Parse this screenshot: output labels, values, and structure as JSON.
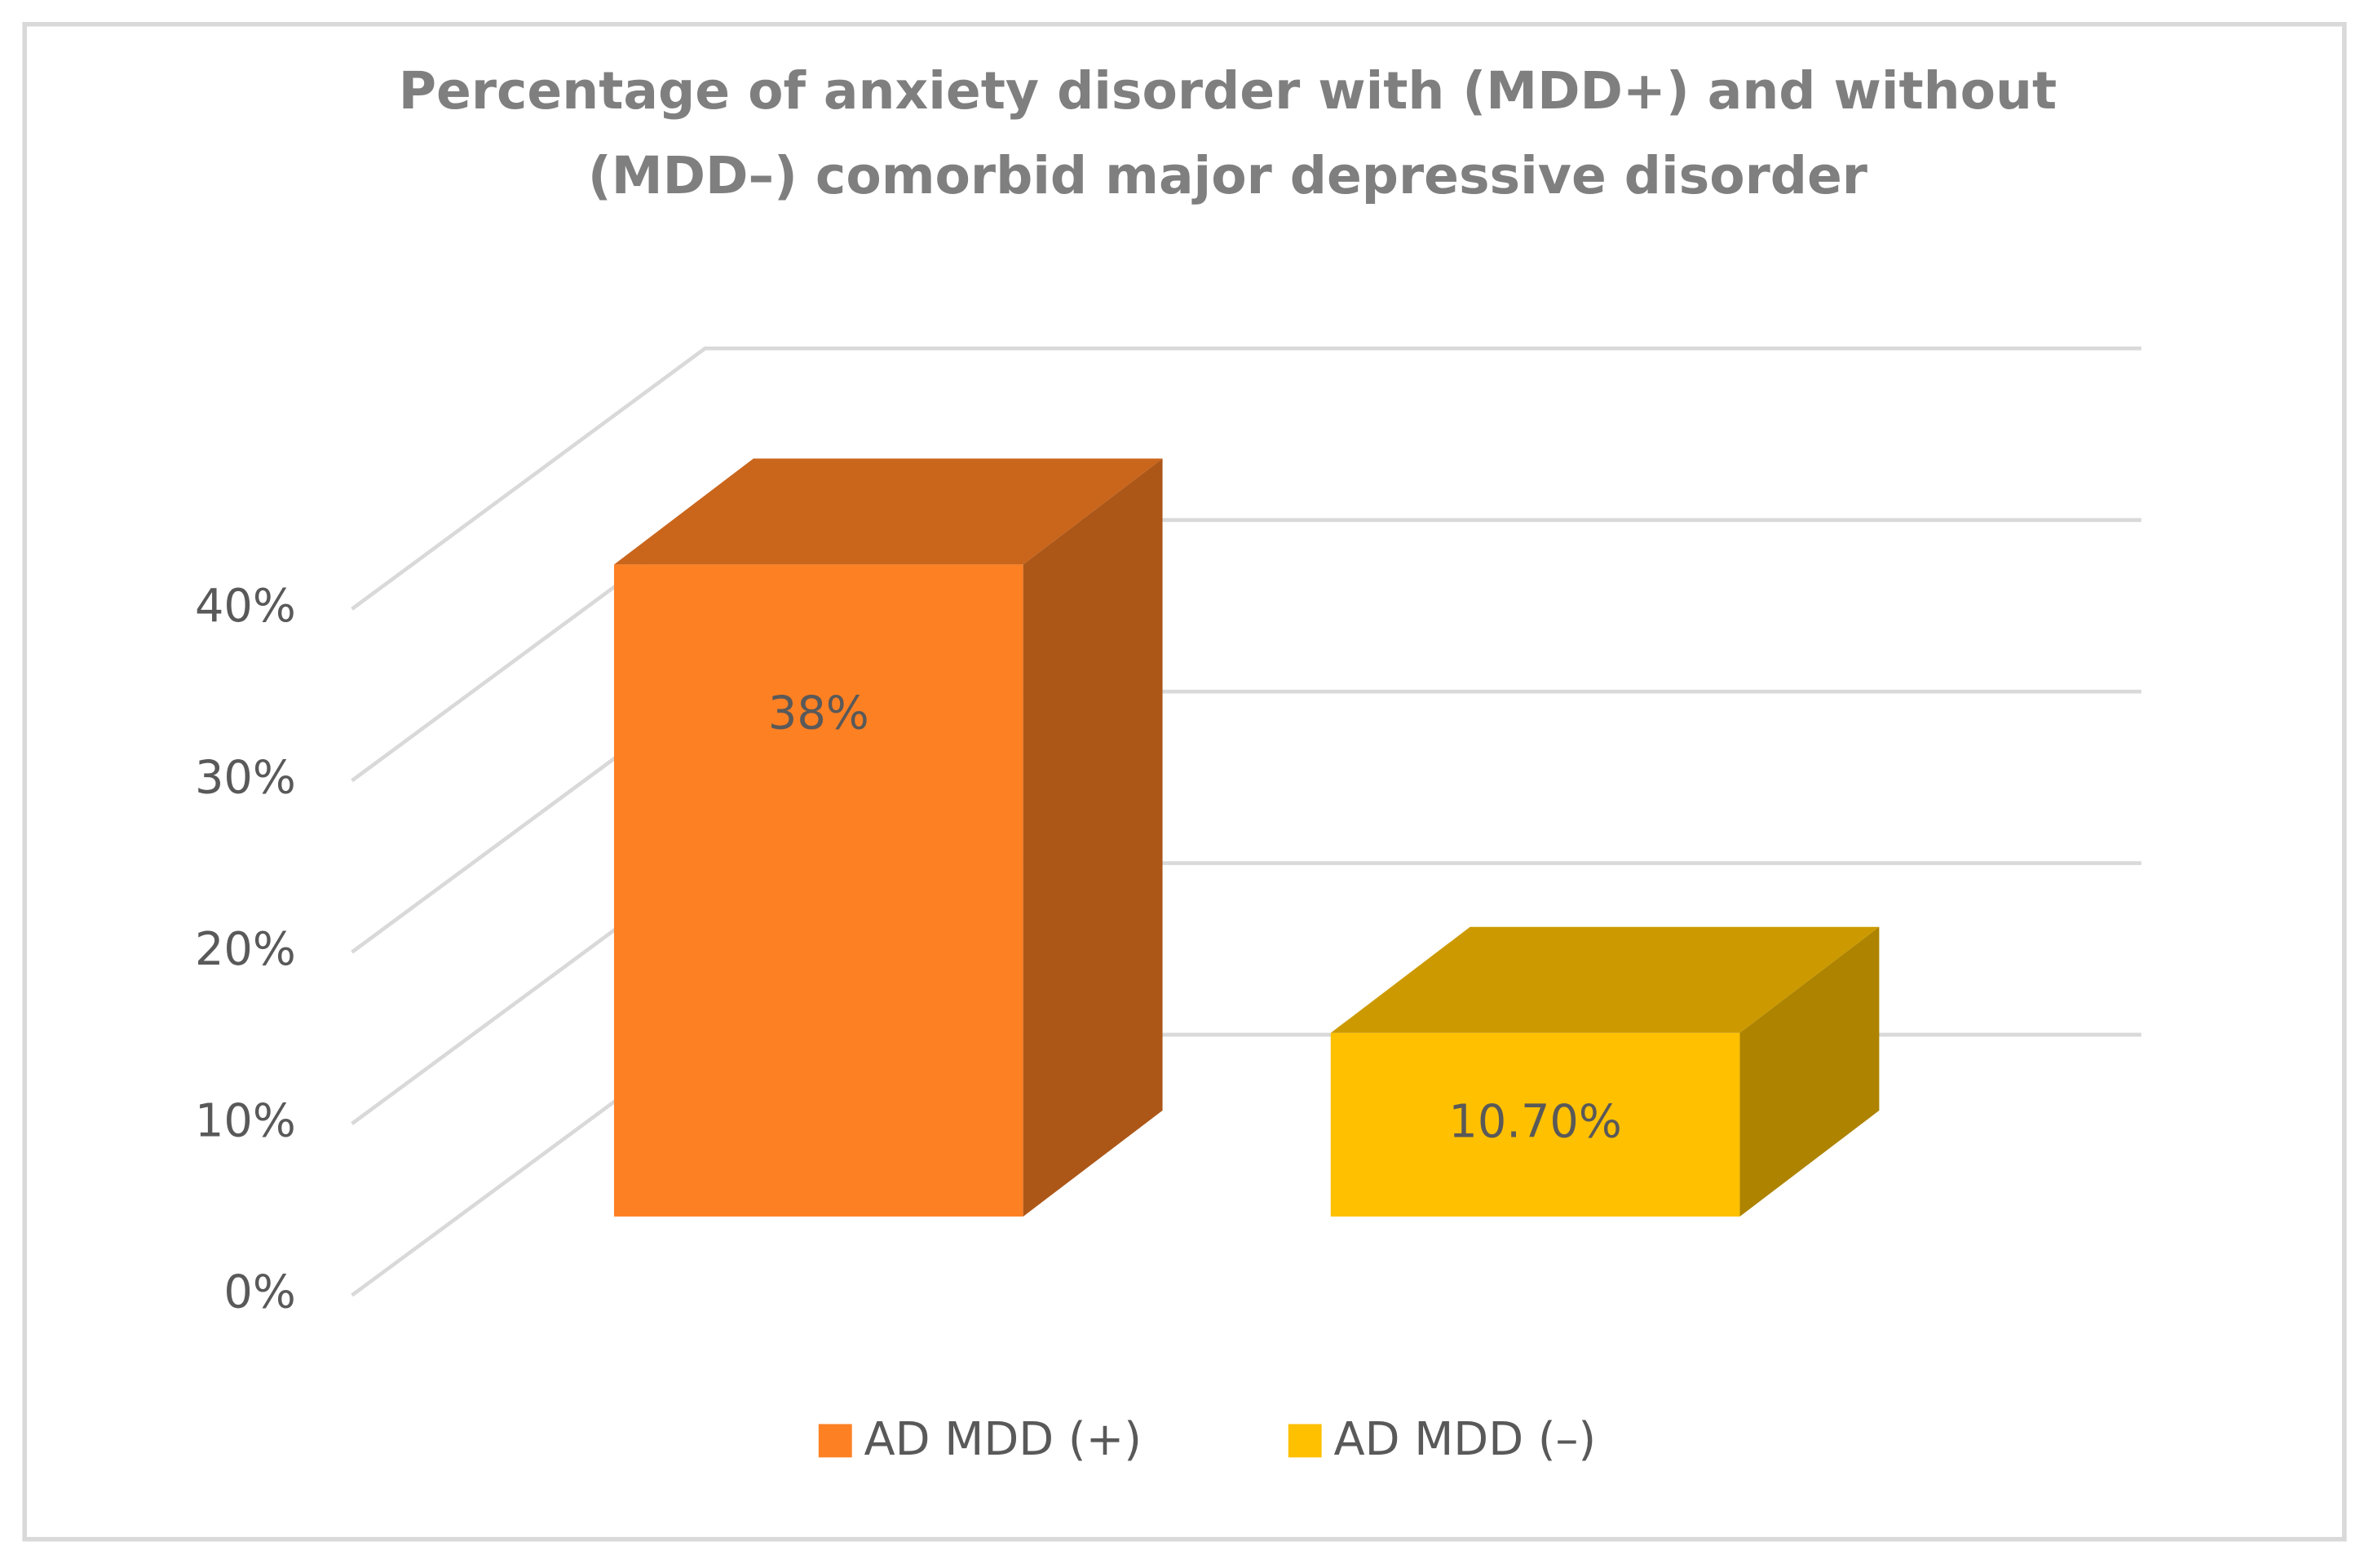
{
  "chart_data": {
    "type": "bar3d",
    "title": "Percentage of anxiety disorder with (MDD+) and without (MDD–) comorbid major depressive disorder",
    "title_lines": [
      "Percentage of anxiety disorder with (MDD+) and without",
      "(MDD–) comorbid major depressive disorder"
    ],
    "series": [
      {
        "name": "AD MDD (+)",
        "color": "#fd8023",
        "values": [
          38
        ],
        "value_labels": [
          "38%"
        ]
      },
      {
        "name": "AD MDD (–)",
        "color": "#ffc000",
        "values": [
          10.7
        ],
        "value_labels": [
          "10.70%"
        ]
      }
    ],
    "ylim": [
      0,
      40
    ],
    "yticks": [
      {
        "value": 0,
        "label": "0%"
      },
      {
        "value": 10,
        "label": "10%"
      },
      {
        "value": 20,
        "label": "20%"
      },
      {
        "value": 30,
        "label": "30%"
      },
      {
        "value": 40,
        "label": "40%"
      }
    ],
    "grid": true,
    "legend": "bottom"
  }
}
